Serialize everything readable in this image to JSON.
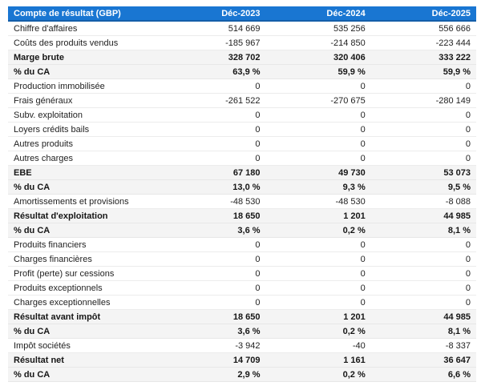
{
  "table": {
    "title": "Compte de résultat (GBP)",
    "header": {
      "label": "Compte de résultat (GBP)",
      "columns": [
        "Déc-2023",
        "Déc-2024",
        "Déc-2025"
      ]
    },
    "rows": [
      {
        "label": "Chiffre d'affaires",
        "values": [
          "514 669",
          "535 256",
          "556 666"
        ],
        "bold": false,
        "highlight": false
      },
      {
        "label": "Coûts des produits vendus",
        "values": [
          "-185 967",
          "-214 850",
          "-223 444"
        ],
        "bold": false,
        "highlight": false
      },
      {
        "label": "Marge brute",
        "values": [
          "328 702",
          "320 406",
          "333 222"
        ],
        "bold": true,
        "highlight": true
      },
      {
        "label": "% du CA",
        "values": [
          "63,9 %",
          "59,9 %",
          "59,9 %"
        ],
        "bold": true,
        "highlight": true
      },
      {
        "label": "Production immobilisée",
        "values": [
          "0",
          "0",
          "0"
        ],
        "bold": false,
        "highlight": false
      },
      {
        "label": "Frais généraux",
        "values": [
          "-261 522",
          "-270 675",
          "-280 149"
        ],
        "bold": false,
        "highlight": false
      },
      {
        "label": "Subv. exploitation",
        "values": [
          "0",
          "0",
          "0"
        ],
        "bold": false,
        "highlight": false
      },
      {
        "label": "Loyers crédits bails",
        "values": [
          "0",
          "0",
          "0"
        ],
        "bold": false,
        "highlight": false
      },
      {
        "label": "Autres produits",
        "values": [
          "0",
          "0",
          "0"
        ],
        "bold": false,
        "highlight": false
      },
      {
        "label": "Autres charges",
        "values": [
          "0",
          "0",
          "0"
        ],
        "bold": false,
        "highlight": false
      },
      {
        "label": "EBE",
        "values": [
          "67 180",
          "49 730",
          "53 073"
        ],
        "bold": true,
        "highlight": true
      },
      {
        "label": "% du CA",
        "values": [
          "13,0 %",
          "9,3 %",
          "9,5 %"
        ],
        "bold": true,
        "highlight": true
      },
      {
        "label": "Amortissements et provisions",
        "values": [
          "-48 530",
          "-48 530",
          "-8 088"
        ],
        "bold": false,
        "highlight": false
      },
      {
        "label": "Résultat d'exploitation",
        "values": [
          "18 650",
          "1 201",
          "44 985"
        ],
        "bold": true,
        "highlight": true
      },
      {
        "label": "% du CA",
        "values": [
          "3,6 %",
          "0,2 %",
          "8,1 %"
        ],
        "bold": true,
        "highlight": true
      },
      {
        "label": "Produits financiers",
        "values": [
          "0",
          "0",
          "0"
        ],
        "bold": false,
        "highlight": false
      },
      {
        "label": "Charges financières",
        "values": [
          "0",
          "0",
          "0"
        ],
        "bold": false,
        "highlight": false
      },
      {
        "label": "Profit (perte) sur cessions",
        "values": [
          "0",
          "0",
          "0"
        ],
        "bold": false,
        "highlight": false
      },
      {
        "label": "Produits exceptionnels",
        "values": [
          "0",
          "0",
          "0"
        ],
        "bold": false,
        "highlight": false
      },
      {
        "label": "Charges exceptionnelles",
        "values": [
          "0",
          "0",
          "0"
        ],
        "bold": false,
        "highlight": false
      },
      {
        "label": "Résultat avant impôt",
        "values": [
          "18 650",
          "1 201",
          "44 985"
        ],
        "bold": true,
        "highlight": true
      },
      {
        "label": "% du CA",
        "values": [
          "3,6 %",
          "0,2 %",
          "8,1 %"
        ],
        "bold": true,
        "highlight": true
      },
      {
        "label": "Impôt sociétés",
        "values": [
          "-3 942",
          "-40",
          "-8 337"
        ],
        "bold": false,
        "highlight": false
      },
      {
        "label": "Résultat net",
        "values": [
          "14 709",
          "1 161",
          "36 647"
        ],
        "bold": true,
        "highlight": true
      },
      {
        "label": "% du CA",
        "values": [
          "2,9 %",
          "0,2 %",
          "6,6 %"
        ],
        "bold": true,
        "highlight": true
      }
    ],
    "colors": {
      "header_bg": "#1976d2",
      "header_border": "#145ea8",
      "highlight_bg": "#f4f4f4",
      "row_border": "#ececec",
      "text": "#1f1f1f"
    }
  }
}
